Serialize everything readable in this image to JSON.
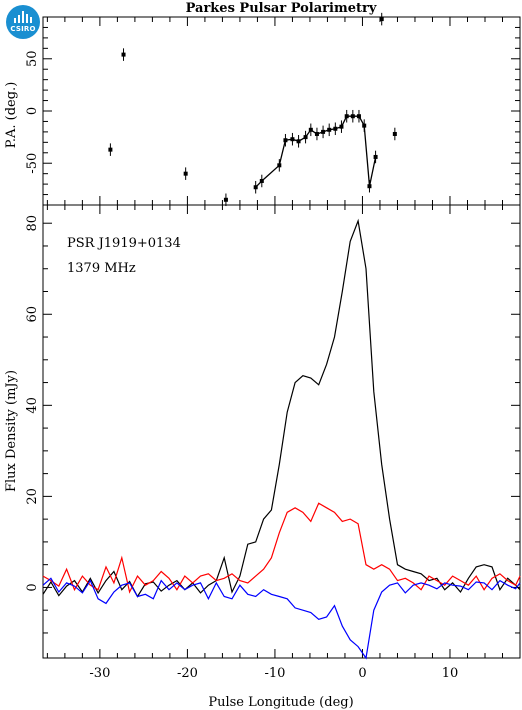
{
  "logo_text": "CSIRO",
  "chart_data": {
    "type": "line",
    "title": "Parkes Pulsar Polarimetry",
    "annotations": [
      "PSR J1919+0134",
      "1379 MHz"
    ],
    "xlabel": "Pulse Longitude (deg)",
    "xlim": [
      -36.5,
      18
    ],
    "x_ticks": [
      -30,
      -20,
      -10,
      0,
      10
    ],
    "grid": false,
    "panels": {
      "pa": {
        "ylabel": "P.A. (deg.)",
        "ylim": [
          -90,
          90
        ],
        "y_ticks": [
          -50,
          0,
          50
        ],
        "connected_points": [
          [
            -12.2,
            -73
          ],
          [
            -11.5,
            -67
          ],
          [
            -9.5,
            -52
          ],
          [
            -8.8,
            -28
          ],
          [
            -8.0,
            -27
          ],
          [
            -7.3,
            -29
          ],
          [
            -6.5,
            -25
          ],
          [
            -5.9,
            -18
          ],
          [
            -5.2,
            -22
          ],
          [
            -4.5,
            -20
          ],
          [
            -3.8,
            -18
          ],
          [
            -3.1,
            -17
          ],
          [
            -2.4,
            -15
          ],
          [
            -1.8,
            -5
          ],
          [
            -1.1,
            -5
          ],
          [
            -0.4,
            -5
          ],
          [
            0.2,
            -14
          ],
          [
            0.8,
            -72
          ],
          [
            1.5,
            -44
          ]
        ],
        "isolated_points": [
          [
            -28.8,
            -37
          ],
          [
            -27.3,
            54
          ],
          [
            -20.2,
            -60
          ],
          [
            -15.6,
            -85
          ],
          [
            2.2,
            88
          ],
          [
            3.7,
            -22
          ]
        ],
        "error_bar_deg": 6
      },
      "flux": {
        "ylabel": "Flux Density (mJy)",
        "ylim": [
          -15.5,
          84
        ],
        "y_ticks": [
          0,
          20,
          40,
          60,
          80
        ],
        "x": [
          -36.5,
          -35.6,
          -34.7,
          -33.8,
          -32.9,
          -32,
          -31.1,
          -30.2,
          -29.3,
          -28.4,
          -27.5,
          -26.6,
          -25.7,
          -24.8,
          -23.9,
          -23,
          -22.1,
          -21.2,
          -20.3,
          -19.4,
          -18.5,
          -17.6,
          -16.7,
          -15.8,
          -14.9,
          -14,
          -13.1,
          -12.2,
          -11.3,
          -10.4,
          -9.5,
          -8.6,
          -7.7,
          -6.8,
          -5.9,
          -5,
          -4.1,
          -3.2,
          -2.3,
          -1.4,
          -0.5,
          0.4,
          1.3,
          2.2,
          3.1,
          4,
          4.9,
          5.8,
          6.7,
          7.6,
          8.5,
          9.4,
          10.3,
          11.2,
          12.1,
          13,
          13.9,
          14.8,
          15.7,
          16.6,
          17.5,
          18
        ],
        "series": [
          {
            "color": "#000000",
            "values": [
              -1.5,
              1.2,
              -1.8,
              0.3,
              1.5,
              -1,
              2,
              -1.2,
              1.5,
              3.5,
              -0.5,
              1.3,
              -2,
              0.8,
              1.2,
              -0.8,
              0.5,
              1.5,
              -0.5,
              1,
              -1.2,
              0.5,
              1.5,
              6.5,
              -1,
              2.5,
              9.5,
              10,
              15,
              17,
              27,
              38.5,
              45,
              46.5,
              46,
              44.5,
              49,
              55,
              65,
              76,
              80.5,
              70,
              43,
              27,
              15,
              5,
              4,
              3.5,
              3,
              1.5,
              2,
              -0.5,
              1,
              -1,
              2,
              4.5,
              5,
              4.5,
              -0.5,
              2,
              0.5,
              -0.5
            ]
          },
          {
            "color": "#ff0000",
            "values": [
              2.5,
              1.5,
              0.3,
              4,
              -0.5,
              2.5,
              0.5,
              -0.5,
              4.5,
              1,
              6.5,
              -1,
              2.5,
              0.5,
              1.5,
              3.5,
              2,
              -0.5,
              2.5,
              1,
              2.5,
              3,
              1.5,
              2,
              3,
              1.5,
              1,
              2.5,
              4,
              6.5,
              12,
              16.5,
              17.5,
              16.5,
              14.5,
              18.5,
              17.5,
              16.5,
              14.5,
              15,
              14,
              5,
              4,
              5,
              4,
              1.5,
              2,
              1,
              -0.5,
              2.5,
              1.5,
              0.5,
              2.5,
              1.5,
              0.5,
              2.5,
              -0.5,
              2,
              3,
              1.5,
              0.5,
              2.5
            ]
          },
          {
            "color": "#0000ff",
            "values": [
              0.5,
              2,
              -1,
              1,
              0.3,
              -1.2,
              1.5,
              -2.5,
              -3.5,
              -1,
              0.5,
              1,
              -2,
              -1.5,
              -2.5,
              1.5,
              -0.5,
              1,
              -0.5,
              0.5,
              1,
              -2.5,
              1,
              -2,
              -2.5,
              0.5,
              -1.5,
              -2,
              -0.5,
              -1.5,
              -2,
              -2.5,
              -4.5,
              -5,
              -5.5,
              -7,
              -6.5,
              -4,
              -8.5,
              -11.5,
              -13,
              -15.5,
              -5,
              -1,
              0.5,
              1,
              -1.2,
              0.5,
              1,
              0.5,
              -0.3,
              1,
              0.5,
              0.3,
              -0.5,
              1.2,
              1,
              -0.5,
              1.5,
              0.5,
              -0.3,
              1
            ]
          }
        ]
      }
    }
  }
}
